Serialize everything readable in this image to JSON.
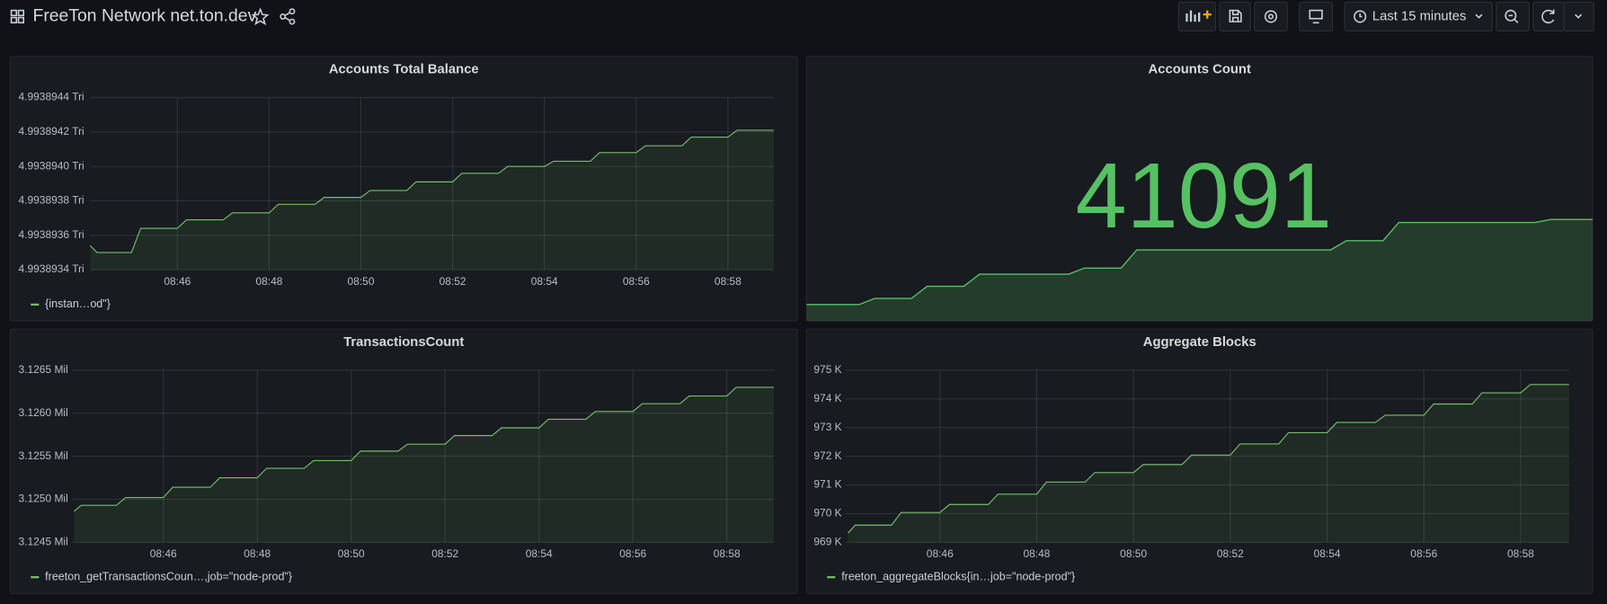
{
  "header": {
    "title": "FreeTon Network net.ton.dev",
    "time_range": "Last 15 minutes"
  },
  "chart_data": [
    {
      "type": "line",
      "title": "Accounts Total Balance",
      "x": [
        44.1,
        44.25,
        45.0,
        45.2,
        46.0,
        46.2,
        47.0,
        47.2,
        48.0,
        48.2,
        49.0,
        49.2,
        50.0,
        50.2,
        51.0,
        51.2,
        52.0,
        52.2,
        53.0,
        53.2,
        54.0,
        54.2,
        55.0,
        55.2,
        56.0,
        56.2,
        57.0,
        57.2,
        58.0,
        58.2,
        59.0
      ],
      "series": [
        {
          "name": "{instan…od\"}",
          "color": "#73bf69",
          "values": [
            4.99389354,
            4.9938935,
            4.9938935,
            4.99389364,
            4.99389364,
            4.99389369,
            4.99389369,
            4.99389373,
            4.99389373,
            4.99389378,
            4.99389378,
            4.99389382,
            4.99389382,
            4.99389386,
            4.99389386,
            4.99389391,
            4.99389391,
            4.99389396,
            4.99389396,
            4.993894,
            4.993894,
            4.99389403,
            4.99389403,
            4.99389408,
            4.99389408,
            4.99389412,
            4.99389412,
            4.99389417,
            4.99389417,
            4.99389421,
            4.99389421
          ]
        }
      ],
      "xlim": [
        44.1,
        59.0
      ],
      "xticks": [
        {
          "value": 46,
          "label": "08:46"
        },
        {
          "value": 48,
          "label": "08:48"
        },
        {
          "value": 50,
          "label": "08:50"
        },
        {
          "value": 52,
          "label": "08:52"
        },
        {
          "value": 54,
          "label": "08:54"
        },
        {
          "value": 56,
          "label": "08:56"
        },
        {
          "value": 58,
          "label": "08:58"
        }
      ],
      "ylim": [
        4.9938934,
        4.9938944
      ],
      "yticks": [
        {
          "value": 4.9938934,
          "label": "4.9938934 Tri"
        },
        {
          "value": 4.9938936,
          "label": "4.9938936 Tri"
        },
        {
          "value": 4.9938938,
          "label": "4.9938938 Tri"
        },
        {
          "value": 4.993894,
          "label": "4.9938940 Tri"
        },
        {
          "value": 4.9938942,
          "label": "4.9938942 Tri"
        },
        {
          "value": 4.9938944,
          "label": "4.9938944 Tri"
        }
      ],
      "grid": true
    },
    {
      "type": "stat",
      "title": "Accounts Count",
      "value": 41091,
      "color": "#56c163",
      "x": [
        44.0,
        45.0,
        45.3,
        46.0,
        46.3,
        47.0,
        47.3,
        49.0,
        49.3,
        50.0,
        50.3,
        54.0,
        54.3,
        55.0,
        55.3,
        57.9,
        58.2,
        59.0
      ],
      "values": [
        41063,
        41063,
        41065,
        41065,
        41069,
        41069,
        41073,
        41073,
        41075,
        41075,
        41081,
        41081,
        41084,
        41084,
        41090,
        41090,
        41091,
        41091
      ],
      "xlim": [
        44.0,
        59.0
      ]
    },
    {
      "type": "line",
      "title": "TransactionsCount",
      "x": [
        44.1,
        44.25,
        45.0,
        45.2,
        46.0,
        46.2,
        47.0,
        47.2,
        48.0,
        48.2,
        49.0,
        49.2,
        50.0,
        50.2,
        51.0,
        51.2,
        52.0,
        52.2,
        53.0,
        53.2,
        54.0,
        54.2,
        55.0,
        55.2,
        56.0,
        56.2,
        57.0,
        57.2,
        58.0,
        58.2,
        59.0
      ],
      "series": [
        {
          "name": "freeton_getTransactionsCoun…,job=\"node-prod\"}",
          "color": "#73bf69",
          "values": [
            3.12486,
            3.12493,
            3.12493,
            3.12502,
            3.12502,
            3.12514,
            3.12514,
            3.12525,
            3.12525,
            3.12536,
            3.12536,
            3.12545,
            3.12545,
            3.12556,
            3.12556,
            3.12564,
            3.12564,
            3.12574,
            3.12574,
            3.12583,
            3.12583,
            3.12593,
            3.12593,
            3.12602,
            3.12602,
            3.12611,
            3.12611,
            3.1262,
            3.1262,
            3.1263,
            3.1263
          ]
        }
      ],
      "xlim": [
        44.05,
        59.0
      ],
      "xticks": [
        {
          "value": 46,
          "label": "08:46"
        },
        {
          "value": 48,
          "label": "08:48"
        },
        {
          "value": 50,
          "label": "08:50"
        },
        {
          "value": 52,
          "label": "08:52"
        },
        {
          "value": 54,
          "label": "08:54"
        },
        {
          "value": 56,
          "label": "08:56"
        },
        {
          "value": 58,
          "label": "08:58"
        }
      ],
      "ylim": [
        3.1245,
        3.1265
      ],
      "yticks": [
        {
          "value": 3.1245,
          "label": "3.1245 Mil"
        },
        {
          "value": 3.125,
          "label": "3.1250 Mil"
        },
        {
          "value": 3.1255,
          "label": "3.1255 Mil"
        },
        {
          "value": 3.126,
          "label": "3.1260 Mil"
        },
        {
          "value": 3.1265,
          "label": "3.1265 Mil"
        }
      ],
      "grid": true
    },
    {
      "type": "line",
      "title": "Aggregate Blocks",
      "x": [
        44.1,
        44.25,
        45.0,
        45.2,
        46.0,
        46.2,
        47.0,
        47.2,
        48.0,
        48.2,
        49.0,
        49.2,
        50.0,
        50.2,
        51.0,
        51.2,
        52.0,
        52.2,
        53.0,
        53.2,
        54.0,
        54.2,
        55.0,
        55.2,
        56.0,
        56.2,
        57.0,
        57.2,
        58.0,
        58.2,
        59.0
      ],
      "series": [
        {
          "name": "freeton_aggregateBlocks{in…job=\"node-prod\"}",
          "color": "#73bf69",
          "values": [
            969.32,
            969.6,
            969.6,
            970.04,
            970.04,
            970.32,
            970.32,
            970.68,
            970.68,
            971.1,
            971.1,
            971.43,
            971.43,
            971.71,
            971.71,
            972.04,
            972.04,
            972.43,
            972.43,
            972.82,
            972.82,
            973.18,
            973.18,
            973.43,
            973.43,
            973.82,
            973.82,
            974.21,
            974.21,
            974.5,
            974.5
          ]
        }
      ],
      "xlim": [
        44.05,
        59.0
      ],
      "xticks": [
        {
          "value": 46,
          "label": "08:46"
        },
        {
          "value": 48,
          "label": "08:48"
        },
        {
          "value": 50,
          "label": "08:50"
        },
        {
          "value": 52,
          "label": "08:52"
        },
        {
          "value": 54,
          "label": "08:54"
        },
        {
          "value": 56,
          "label": "08:56"
        },
        {
          "value": 58,
          "label": "08:58"
        }
      ],
      "ylim": [
        969,
        975
      ],
      "yticks": [
        {
          "value": 969,
          "label": "969 K"
        },
        {
          "value": 970,
          "label": "970 K"
        },
        {
          "value": 971,
          "label": "971 K"
        },
        {
          "value": 972,
          "label": "972 K"
        },
        {
          "value": 973,
          "label": "973 K"
        },
        {
          "value": 974,
          "label": "974 K"
        },
        {
          "value": 975,
          "label": "975 K"
        }
      ],
      "grid": true
    }
  ]
}
